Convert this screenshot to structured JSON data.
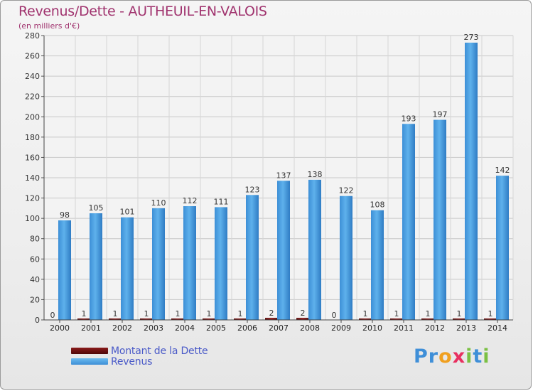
{
  "chart_data": {
    "type": "bar",
    "title": "Revenus/Dette - AUTHEUIL-EN-VALOIS",
    "subtitle": "(en milliers d'€)",
    "categories": [
      "2000",
      "2001",
      "2002",
      "2003",
      "2004",
      "2005",
      "2006",
      "2007",
      "2008",
      "2009",
      "2010",
      "2011",
      "2012",
      "2013",
      "2014"
    ],
    "series": [
      {
        "name": "Montant de la Dette",
        "color": "#6b0e0e",
        "values": [
          0,
          1,
          1,
          1,
          1,
          1,
          1,
          2,
          2,
          0,
          1,
          1,
          1,
          1,
          1
        ]
      },
      {
        "name": "Revenus",
        "color": "#4aa3e6",
        "values": [
          98,
          105,
          101,
          110,
          112,
          111,
          123,
          137,
          138,
          122,
          108,
          193,
          197,
          273,
          142
        ]
      }
    ],
    "ylim": [
      0,
      280
    ],
    "yticks": [
      0,
      20,
      40,
      60,
      80,
      100,
      120,
      140,
      160,
      180,
      200,
      220,
      240,
      260,
      280
    ],
    "grid": true
  },
  "legend": {
    "items": [
      {
        "label": "Montant de la Dette",
        "color": "#6b0e0e"
      },
      {
        "label": "Revenus",
        "color": "#4aa3e6"
      }
    ]
  },
  "brand": {
    "letters": [
      {
        "ch": "P",
        "color": "#3f8fd8"
      },
      {
        "ch": "r",
        "color": "#3f8fd8"
      },
      {
        "ch": "o",
        "color": "#f0a020"
      },
      {
        "ch": "x",
        "color": "#e83060"
      },
      {
        "ch": "i",
        "color": "#7ac043"
      },
      {
        "ch": "t",
        "color": "#3f8fd8"
      },
      {
        "ch": "i",
        "color": "#7ac043"
      }
    ]
  }
}
